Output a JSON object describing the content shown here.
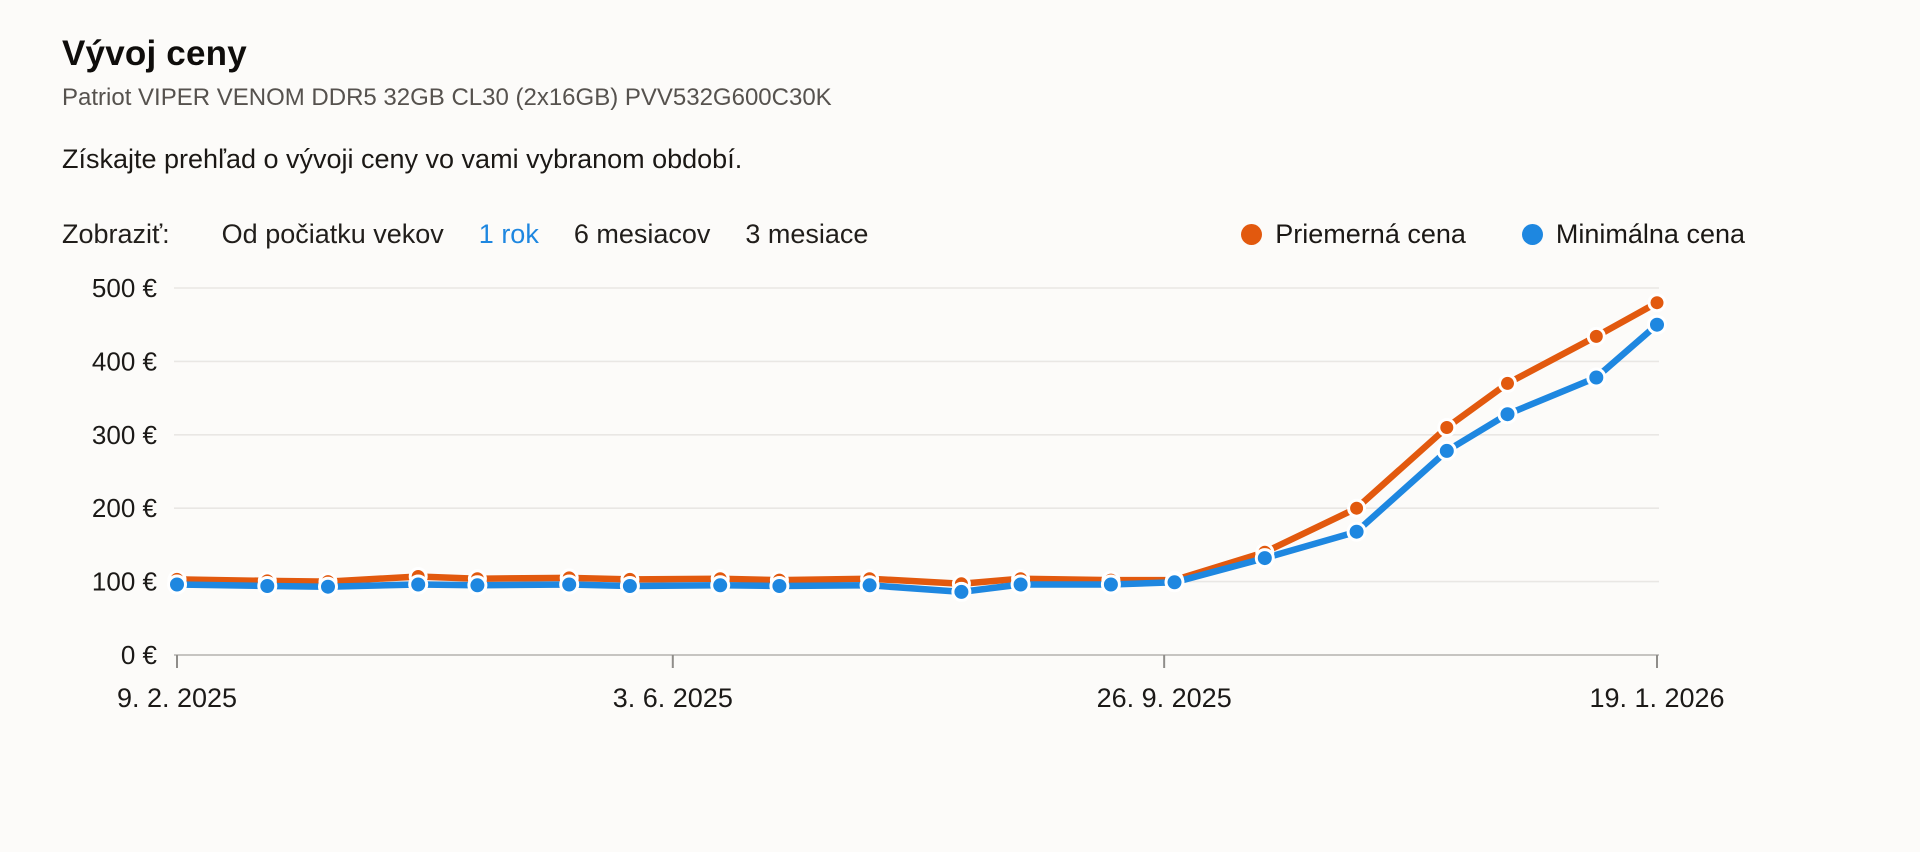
{
  "page": {
    "title": "Vývoj ceny",
    "subtitle": "Patriot VIPER VENOM DDR5 32GB CL30 (2x16GB) PVV532G600C30K",
    "description": "Získajte prehľad o vývoji ceny vo vami vybranom období."
  },
  "filters": {
    "label": "Zobraziť:",
    "options": [
      {
        "label": "Od počiatku vekov",
        "active": false
      },
      {
        "label": "1 rok",
        "active": true
      },
      {
        "label": "6 mesiacov",
        "active": false
      },
      {
        "label": "3 mesiace",
        "active": false
      }
    ],
    "active_color": "#1e87e0"
  },
  "legend": [
    {
      "label": "Priemerná cena",
      "color": "#e2590e"
    },
    {
      "label": "Minimálna cena",
      "color": "#1e87e0"
    }
  ],
  "colors": {
    "average": "#e2590e",
    "minimum": "#1e87e0",
    "gridline": "#e9e7e4",
    "axis_line": "#c6c4c1",
    "tick": "#8f8d8a",
    "axis_text": "#1b1917"
  },
  "chart_data": {
    "type": "line",
    "currency": "EUR",
    "ylim": [
      0,
      500
    ],
    "grid": true,
    "legend_position": "top-right",
    "y_ticks": [
      {
        "value": 0,
        "label": "0 €"
      },
      {
        "value": 100,
        "label": "100 €"
      },
      {
        "value": 200,
        "label": "200 €"
      },
      {
        "value": 300,
        "label": "300 €"
      },
      {
        "value": 400,
        "label": "400 €"
      },
      {
        "value": 500,
        "label": "500 €"
      }
    ],
    "x_ticks": [
      {
        "frac": 0.0,
        "label": "9. 2. 2025"
      },
      {
        "frac": 0.335,
        "label": "3. 6. 2025"
      },
      {
        "frac": 0.667,
        "label": "26. 9. 2025"
      },
      {
        "frac": 1.0,
        "label": "19. 1. 2026"
      }
    ],
    "series": [
      {
        "name": "Priemerná cena",
        "color": "#e2590e",
        "points": [
          {
            "frac": 0.0,
            "value": 103
          },
          {
            "frac": 0.061,
            "value": 101
          },
          {
            "frac": 0.102,
            "value": 100
          },
          {
            "frac": 0.163,
            "value": 107
          },
          {
            "frac": 0.203,
            "value": 104
          },
          {
            "frac": 0.265,
            "value": 105
          },
          {
            "frac": 0.306,
            "value": 103
          },
          {
            "frac": 0.367,
            "value": 104
          },
          {
            "frac": 0.407,
            "value": 102
          },
          {
            "frac": 0.468,
            "value": 104
          },
          {
            "frac": 0.53,
            "value": 97
          },
          {
            "frac": 0.57,
            "value": 104
          },
          {
            "frac": 0.631,
            "value": 102
          },
          {
            "frac": 0.674,
            "value": 102
          },
          {
            "frac": 0.735,
            "value": 140
          },
          {
            "frac": 0.797,
            "value": 200
          },
          {
            "frac": 0.858,
            "value": 310
          },
          {
            "frac": 0.899,
            "value": 370
          },
          {
            "frac": 0.959,
            "value": 434
          },
          {
            "frac": 1.0,
            "value": 480
          }
        ]
      },
      {
        "name": "Minimálna cena",
        "color": "#1e87e0",
        "points": [
          {
            "frac": 0.0,
            "value": 96
          },
          {
            "frac": 0.061,
            "value": 94
          },
          {
            "frac": 0.102,
            "value": 93
          },
          {
            "frac": 0.163,
            "value": 96
          },
          {
            "frac": 0.203,
            "value": 95
          },
          {
            "frac": 0.265,
            "value": 96
          },
          {
            "frac": 0.306,
            "value": 94
          },
          {
            "frac": 0.367,
            "value": 95
          },
          {
            "frac": 0.407,
            "value": 94
          },
          {
            "frac": 0.468,
            "value": 95
          },
          {
            "frac": 0.53,
            "value": 86
          },
          {
            "frac": 0.57,
            "value": 96
          },
          {
            "frac": 0.631,
            "value": 96
          },
          {
            "frac": 0.674,
            "value": 99
          },
          {
            "frac": 0.735,
            "value": 132
          },
          {
            "frac": 0.797,
            "value": 168
          },
          {
            "frac": 0.858,
            "value": 278
          },
          {
            "frac": 0.899,
            "value": 328
          },
          {
            "frac": 0.959,
            "value": 378
          },
          {
            "frac": 1.0,
            "value": 450
          }
        ]
      }
    ]
  }
}
